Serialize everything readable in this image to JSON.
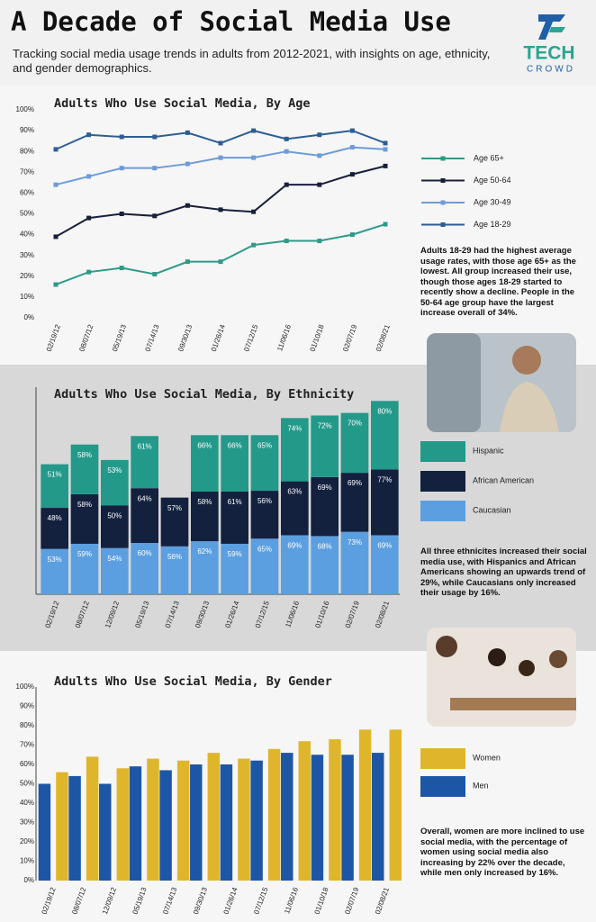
{
  "header": {
    "title": "A Decade of Social Media Use",
    "subtitle": "Tracking social media usage trends in adults from 2012-2021, with insights on age, ethnicity, and gender demographics.",
    "logo": [
      "TECH",
      "CROWD"
    ]
  },
  "chart_data": [
    {
      "type": "line",
      "title": "Adults Who Use Social Media, By Age",
      "categories": [
        "02/19/12",
        "08/07/12",
        "05/19/13",
        "07/14/13",
        "09/30/13",
        "01/26/14",
        "07/12/15",
        "11/06/16",
        "01/10/18",
        "02/07/19",
        "02/08/21"
      ],
      "series": [
        {
          "name": "Age 65+",
          "color": "#2f9a88",
          "values": [
            16,
            22,
            24,
            21,
            27,
            27,
            35,
            37,
            37,
            40,
            45
          ]
        },
        {
          "name": "Age 50-64",
          "color": "#18203a",
          "values": [
            39,
            48,
            50,
            49,
            54,
            52,
            51,
            64,
            64,
            69,
            73
          ]
        },
        {
          "name": "Age 30-49",
          "color": "#6e9bd8",
          "values": [
            64,
            68,
            72,
            72,
            74,
            77,
            77,
            80,
            78,
            82,
            81
          ]
        },
        {
          "name": "Age 18-29",
          "color": "#2d5e93",
          "values": [
            81,
            88,
            87,
            87,
            89,
            84,
            90,
            86,
            88,
            90,
            84
          ]
        }
      ],
      "ylim": [
        0,
        100
      ],
      "yticks": [
        {
          "value": 0,
          "label": "0%"
        },
        {
          "value": 10,
          "label": "10%"
        },
        {
          "value": 20,
          "label": "20%"
        },
        {
          "value": 30,
          "label": "30%"
        },
        {
          "value": 40,
          "label": "40%"
        },
        {
          "value": 50,
          "label": "50%"
        },
        {
          "value": 60,
          "label": "60%"
        },
        {
          "value": 70,
          "label": "70%"
        },
        {
          "value": 80,
          "label": "80%"
        },
        {
          "value": 90,
          "label": "90%"
        },
        {
          "value": 100,
          "label": "100%"
        }
      ],
      "annotation": "Adults 18-29 had the highest average usage rates, with those age 65+ as the lowest. All group increased their use, though those ages 18-29 started to recently show a decline. People in the 50-64 age group have the largest increase overall of 34%."
    },
    {
      "type": "stacked_bar",
      "title": "Adults Who Use Social Media, By Ethnicity",
      "categories": [
        "02/19/12",
        "08/07/12",
        "12/09/12",
        "05/19/13",
        "07/14/13",
        "09/30/13",
        "01/26/14",
        "07/12/15",
        "11/06/16",
        "01/10/16",
        "02/07/19",
        "02/08/21"
      ],
      "series": [
        {
          "name": "Caucasian",
          "color": "#5b9fe0",
          "values": [
            53,
            59,
            54,
            60,
            56,
            62,
            59,
            65,
            69,
            68,
            73,
            69
          ],
          "value_labels": [
            "53%",
            "59%",
            "54%",
            "60%",
            "56%",
            "62%",
            "59%",
            "65%",
            "69%",
            "68%",
            "73%",
            "69%"
          ]
        },
        {
          "name": "African American",
          "color": "#13213f",
          "values": [
            48,
            58,
            50,
            64,
            57,
            58,
            61,
            56,
            63,
            69,
            69,
            77
          ],
          "value_labels": [
            "48%",
            "58%",
            "50%",
            "64%",
            "57%",
            "58%",
            "61%",
            "56%",
            "63%",
            "69%",
            "69%",
            "77%"
          ]
        },
        {
          "name": "Hispanic",
          "color": "#23998a",
          "values": [
            51,
            58,
            53,
            61,
            null,
            66,
            66,
            65,
            74,
            72,
            70,
            80
          ],
          "value_labels": [
            "51%",
            "58%",
            "53%",
            "61%",
            null,
            "66%",
            "66%",
            "65%",
            "74%",
            "72%",
            "70%",
            "80%"
          ]
        }
      ],
      "annotation": "All three ethnicites increased their social media use, with Hispanics and African Americans showing an upwards trend of 29%, while Caucasians only increased their usage by 16%."
    },
    {
      "type": "bar",
      "title": "Adults Who Use Social Media, By Gender",
      "categories": [
        "02/19/12",
        "08/07/12",
        "12/09/12",
        "05/19/13",
        "07/14/13",
        "09/30/13",
        "01/26/14",
        "07/12/15",
        "11/06/16",
        "01/10/18",
        "02/07/19",
        "02/08/21"
      ],
      "series": [
        {
          "name": "Men",
          "color": "#1e56a6",
          "values": [
            50,
            54,
            50,
            59,
            57,
            60,
            60,
            62,
            66,
            65,
            65,
            66
          ]
        },
        {
          "name": "Women",
          "color": "#dfb62b",
          "values": [
            56,
            64,
            58,
            63,
            62,
            66,
            63,
            68,
            72,
            73,
            78,
            78
          ]
        }
      ],
      "ylim": [
        0,
        100
      ],
      "yticks": [
        {
          "value": 0,
          "label": "0%"
        },
        {
          "value": 10,
          "label": "10%"
        },
        {
          "value": 20,
          "label": "20%"
        },
        {
          "value": 30,
          "label": "30%"
        },
        {
          "value": 40,
          "label": "40%"
        },
        {
          "value": 50,
          "label": "50%"
        },
        {
          "value": 60,
          "label": "60%"
        },
        {
          "value": 70,
          "label": "70%"
        },
        {
          "value": 80,
          "label": "80%"
        },
        {
          "value": 90,
          "label": "90%"
        },
        {
          "value": 100,
          "label": "100%"
        }
      ],
      "annotation": "Overall, women are more inclined to use social media, with the percentage of women using social media also increasing by 22% over the decade, while men only increased by 16%."
    }
  ]
}
